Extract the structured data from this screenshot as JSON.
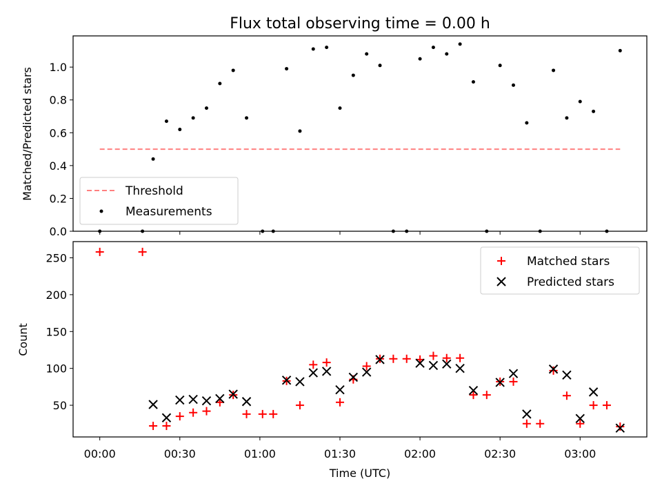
{
  "chart_data": [
    {
      "type": "scatter",
      "title": "Flux total observing time = 0.00 h",
      "xlabel": "",
      "ylabel": "Matched/Predicted stars",
      "ylim": [
        0,
        1.19
      ],
      "yticks": [
        0.0,
        0.2,
        0.4,
        0.6,
        0.8,
        1.0
      ],
      "ytick_labels": [
        "0.0",
        "0.2",
        "0.4",
        "0.6",
        "0.8",
        "1.0"
      ],
      "threshold": {
        "name": "Threshold",
        "value": 0.5,
        "x_range": [
          "00:00",
          "03:15"
        ],
        "color": "#ff7f7f"
      },
      "legend": {
        "placement": "lower-left",
        "entries": [
          "Threshold",
          "Measurements"
        ]
      },
      "series": [
        {
          "name": "Measurements",
          "color": "#000000",
          "points": [
            [
              "00:00",
              0.0
            ],
            [
              "00:16",
              0.0
            ],
            [
              "00:20",
              0.44
            ],
            [
              "00:25",
              0.67
            ],
            [
              "00:30",
              0.62
            ],
            [
              "00:35",
              0.69
            ],
            [
              "00:40",
              0.75
            ],
            [
              "00:45",
              0.9
            ],
            [
              "00:50",
              0.98
            ],
            [
              "00:55",
              0.69
            ],
            [
              "01:01",
              0.0
            ],
            [
              "01:05",
              0.0
            ],
            [
              "01:10",
              0.99
            ],
            [
              "01:15",
              0.61
            ],
            [
              "01:20",
              1.11
            ],
            [
              "01:25",
              1.12
            ],
            [
              "01:30",
              0.75
            ],
            [
              "01:35",
              0.95
            ],
            [
              "01:40",
              1.08
            ],
            [
              "01:45",
              1.01
            ],
            [
              "01:50",
              0.0
            ],
            [
              "01:55",
              0.0
            ],
            [
              "02:00",
              1.05
            ],
            [
              "02:05",
              1.12
            ],
            [
              "02:10",
              1.08
            ],
            [
              "02:15",
              1.14
            ],
            [
              "02:20",
              0.91
            ],
            [
              "02:25",
              0.0
            ],
            [
              "02:30",
              1.01
            ],
            [
              "02:35",
              0.89
            ],
            [
              "02:40",
              0.66
            ],
            [
              "02:45",
              0.0
            ],
            [
              "02:50",
              0.98
            ],
            [
              "02:55",
              0.69
            ],
            [
              "03:00",
              0.79
            ],
            [
              "03:05",
              0.73
            ],
            [
              "03:10",
              0.0
            ],
            [
              "03:15",
              1.1
            ]
          ]
        }
      ]
    },
    {
      "type": "scatter",
      "title": "",
      "xlabel": "Time (UTC)",
      "ylabel": "Count",
      "xlim": [
        "-00:10",
        "03:25"
      ],
      "ylim": [
        7,
        272
      ],
      "xticks": [
        "00:00",
        "00:30",
        "01:00",
        "01:30",
        "02:00",
        "02:30",
        "03:00"
      ],
      "yticks": [
        50,
        100,
        150,
        200,
        250
      ],
      "ytick_labels": [
        "50",
        "100",
        "150",
        "200",
        "250"
      ],
      "legend": {
        "placement": "upper-right",
        "entries": [
          "Matched stars",
          "Predicted stars"
        ]
      },
      "series": [
        {
          "name": "Matched stars",
          "marker": "plus",
          "color": "#ff0000",
          "points": [
            [
              "00:00",
              258
            ],
            [
              "00:16",
              258
            ],
            [
              "00:20",
              22
            ],
            [
              "00:25",
              22
            ],
            [
              "00:30",
              35
            ],
            [
              "00:35",
              40
            ],
            [
              "00:40",
              42
            ],
            [
              "00:45",
              54
            ],
            [
              "00:50",
              64
            ],
            [
              "00:55",
              38
            ],
            [
              "01:01",
              38
            ],
            [
              "01:05",
              38
            ],
            [
              "01:10",
              83
            ],
            [
              "01:15",
              50
            ],
            [
              "01:20",
              105
            ],
            [
              "01:25",
              108
            ],
            [
              "01:30",
              54
            ],
            [
              "01:35",
              85
            ],
            [
              "01:40",
              103
            ],
            [
              "01:45",
              113
            ],
            [
              "01:50",
              113
            ],
            [
              "01:55",
              113
            ],
            [
              "02:00",
              112
            ],
            [
              "02:05",
              117
            ],
            [
              "02:10",
              114
            ],
            [
              "02:15",
              114
            ],
            [
              "02:20",
              64
            ],
            [
              "02:25",
              64
            ],
            [
              "02:30",
              82
            ],
            [
              "02:35",
              82
            ],
            [
              "02:40",
              25
            ],
            [
              "02:45",
              25
            ],
            [
              "02:50",
              97
            ],
            [
              "02:55",
              63
            ],
            [
              "03:00",
              25
            ],
            [
              "03:05",
              50
            ],
            [
              "03:10",
              50
            ],
            [
              "03:15",
              21
            ]
          ]
        },
        {
          "name": "Predicted stars",
          "marker": "x",
          "color": "#000000",
          "points": [
            [
              "00:20",
              51
            ],
            [
              "00:25",
              33
            ],
            [
              "00:30",
              57
            ],
            [
              "00:35",
              58
            ],
            [
              "00:40",
              56
            ],
            [
              "00:45",
              59
            ],
            [
              "00:50",
              65
            ],
            [
              "00:55",
              55
            ],
            [
              "01:10",
              84
            ],
            [
              "01:15",
              82
            ],
            [
              "01:20",
              94
            ],
            [
              "01:25",
              96
            ],
            [
              "01:30",
              71
            ],
            [
              "01:35",
              88
            ],
            [
              "01:40",
              95
            ],
            [
              "01:45",
              112
            ],
            [
              "02:00",
              107
            ],
            [
              "02:05",
              104
            ],
            [
              "02:10",
              106
            ],
            [
              "02:15",
              100
            ],
            [
              "02:20",
              70
            ],
            [
              "02:30",
              81
            ],
            [
              "02:35",
              93
            ],
            [
              "02:40",
              38
            ],
            [
              "02:50",
              99
            ],
            [
              "02:55",
              91
            ],
            [
              "03:00",
              32
            ],
            [
              "03:05",
              68
            ],
            [
              "03:15",
              19
            ]
          ]
        }
      ]
    }
  ]
}
